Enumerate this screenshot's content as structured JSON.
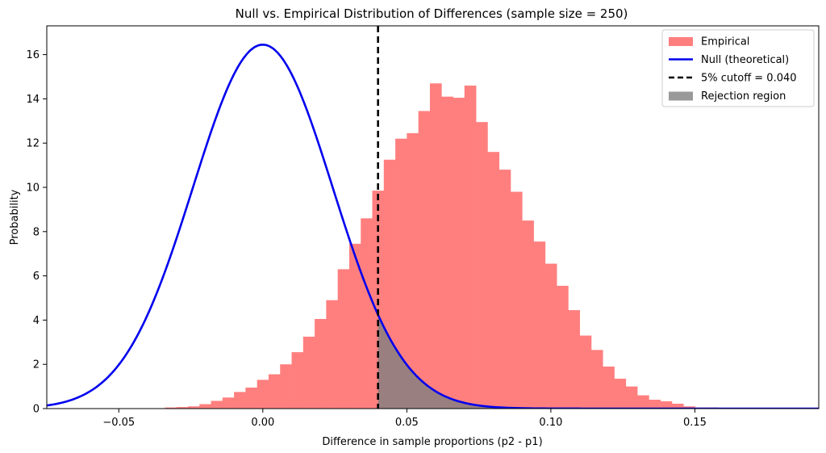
{
  "chart_data": {
    "type": "bar",
    "title": "Null vs. Empirical Distribution of Differences (sample size = 250)",
    "xlabel": "Difference in sample proportions (p2 - p1)",
    "ylabel": "Probability",
    "xlim": [
      -0.075,
      0.193
    ],
    "ylim": [
      0,
      17.3
    ],
    "xticks": [
      -0.05,
      0.0,
      0.05,
      0.1,
      0.15
    ],
    "xtick_labels": [
      "−0.05",
      "0.00",
      "0.05",
      "0.10",
      "0.15"
    ],
    "yticks": [
      0,
      2,
      4,
      6,
      8,
      10,
      12,
      14,
      16
    ],
    "ytick_labels": [
      "0",
      "2",
      "4",
      "6",
      "8",
      "10",
      "12",
      "14",
      "16"
    ],
    "grid": false,
    "legend_position": "top-right",
    "colors": {
      "empirical": "#ff7f7f",
      "null": "#0000ee",
      "cutoff": "#000000",
      "rejection": "#808080"
    },
    "legend": [
      {
        "key": "empirical",
        "label": "Empirical",
        "kind": "patch"
      },
      {
        "key": "null",
        "label": "Null (theoretical)",
        "kind": "line"
      },
      {
        "key": "cutoff",
        "label": "5% cutoff = 0.040",
        "kind": "dashed"
      },
      {
        "key": "rejection",
        "label": "Rejection region",
        "kind": "patch"
      }
    ],
    "histogram": {
      "name": "Empirical",
      "bin_width": 0.004,
      "bin_starts": [
        -0.034,
        -0.03,
        -0.026,
        -0.022,
        -0.018,
        -0.014,
        -0.01,
        -0.006,
        -0.002,
        0.002,
        0.006,
        0.01,
        0.014,
        0.018,
        0.022,
        0.026,
        0.03,
        0.034,
        0.038,
        0.042,
        0.046,
        0.05,
        0.054,
        0.058,
        0.062,
        0.066,
        0.07,
        0.074,
        0.078,
        0.082,
        0.086,
        0.09,
        0.094,
        0.098,
        0.102,
        0.106,
        0.11,
        0.114,
        0.118,
        0.122,
        0.126,
        0.13,
        0.134,
        0.138,
        0.142,
        0.146,
        0.15,
        0.154
      ],
      "values": [
        0.05,
        0.07,
        0.1,
        0.2,
        0.35,
        0.5,
        0.75,
        0.95,
        1.3,
        1.55,
        2.0,
        2.55,
        3.25,
        4.05,
        4.9,
        6.3,
        7.45,
        8.6,
        9.85,
        11.25,
        12.2,
        12.45,
        13.45,
        14.7,
        14.1,
        14.05,
        14.6,
        12.95,
        11.6,
        10.8,
        9.8,
        8.5,
        7.55,
        6.55,
        5.55,
        4.45,
        3.3,
        2.65,
        1.9,
        1.35,
        1.0,
        0.6,
        0.4,
        0.33,
        0.22,
        0.1,
        0.05,
        0.05
      ]
    },
    "null_curve": {
      "name": "Null (theoretical)",
      "distribution": "normal",
      "mean": 0.0,
      "sd": 0.0243,
      "peak": 16.45
    },
    "cutoff": {
      "name": "5% cutoff = 0.040",
      "x": 0.04
    },
    "rejection_region": {
      "name": "Rejection region",
      "from_x": 0.04,
      "under": "null_curve"
    }
  }
}
